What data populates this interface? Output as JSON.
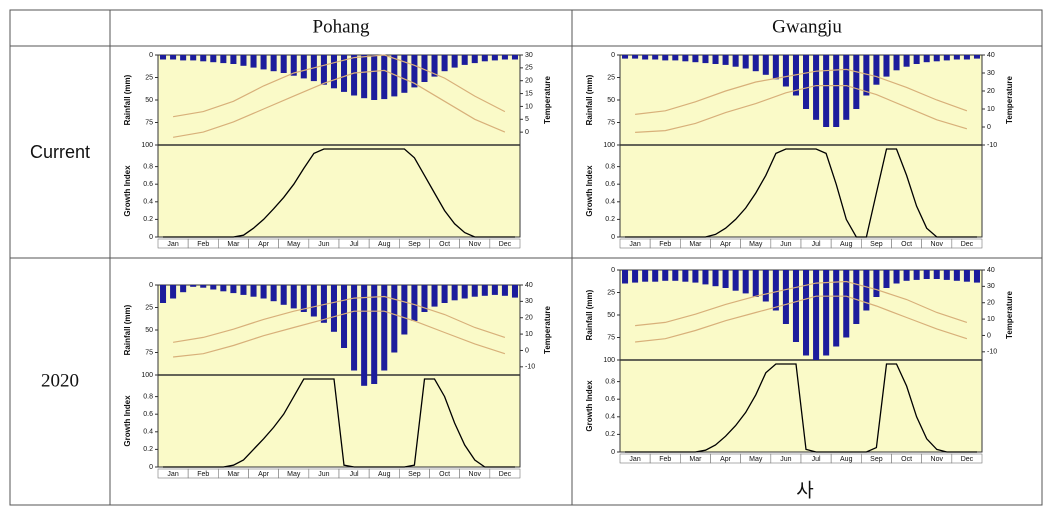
{
  "table": {
    "columns": [
      "Pohang",
      "Gwangju"
    ],
    "rows": [
      "Current",
      "2020"
    ],
    "footer": "사"
  },
  "chart_data": [
    {
      "type": "climograph",
      "months": [
        "Jan",
        "Feb",
        "Mar",
        "Apr",
        "May",
        "Jun",
        "Jul",
        "Aug",
        "Sep",
        "Oct",
        "Nov",
        "Dec"
      ],
      "rainfall": {
        "label": "Rainfall (mm)",
        "color": "#1c1c9c",
        "ylim": [
          0,
          100
        ],
        "yticks": [
          0,
          25,
          50,
          75,
          100
        ],
        "values": [
          5,
          5,
          6,
          6,
          7,
          8,
          9,
          10,
          12,
          14,
          16,
          18,
          20,
          23,
          26,
          29,
          33,
          37,
          41,
          45,
          48,
          50,
          49,
          46,
          42,
          36,
          30,
          24,
          18,
          14,
          11,
          9,
          7,
          6,
          5,
          5
        ]
      },
      "temperature": {
        "label": "Temperature",
        "color": "#d8b07a",
        "ylim": [
          -5,
          30
        ],
        "yticks": [
          0,
          5,
          10,
          15,
          20,
          25,
          30
        ],
        "series": [
          {
            "values": [
              6,
              8,
              12,
              18,
              23,
              26,
              29,
              30,
              26,
              21,
              14,
              8
            ]
          },
          {
            "values": [
              -2,
              0,
              4,
              9,
              14,
              19,
              23,
              24,
              19,
              12,
              5,
              0
            ]
          }
        ]
      },
      "growth": {
        "label": "Growth Index",
        "color": "#000000",
        "ylim": [
          0,
          1
        ],
        "yticks": [
          0,
          0.2,
          0.4,
          0.6,
          0.8
        ],
        "values": [
          0,
          0,
          0,
          0,
          0,
          0,
          0,
          0,
          0.02,
          0.1,
          0.2,
          0.32,
          0.45,
          0.6,
          0.78,
          0.95,
          1,
          1,
          1,
          1,
          1,
          1,
          1,
          1,
          1,
          0.9,
          0.7,
          0.5,
          0.3,
          0.15,
          0.05,
          0,
          0,
          0,
          0,
          0
        ]
      }
    },
    {
      "type": "climograph",
      "months": [
        "Jan",
        "Feb",
        "Mar",
        "Apr",
        "May",
        "Jun",
        "Jul",
        "Aug",
        "Sep",
        "Oct",
        "Nov",
        "Dec"
      ],
      "rainfall": {
        "label": "Rainfall (mm)",
        "color": "#1c1c9c",
        "ylim": [
          0,
          100
        ],
        "yticks": [
          0,
          25,
          50,
          75,
          100
        ],
        "values": [
          4,
          4,
          5,
          5,
          6,
          6,
          7,
          8,
          9,
          10,
          11,
          13,
          15,
          18,
          22,
          27,
          35,
          45,
          60,
          72,
          80,
          80,
          72,
          60,
          45,
          33,
          24,
          17,
          13,
          10,
          8,
          7,
          6,
          5,
          5,
          4
        ]
      },
      "temperature": {
        "label": "Temperature",
        "color": "#d8b07a",
        "ylim": [
          -10,
          40
        ],
        "yticks": [
          -10,
          0,
          10,
          20,
          30,
          40
        ],
        "series": [
          {
            "values": [
              7,
              9,
              14,
              20,
              25,
              28,
              31,
              32,
              28,
              22,
              15,
              9
            ]
          },
          {
            "values": [
              -3,
              -2,
              2,
              8,
              13,
              19,
              23,
              23,
              18,
              11,
              4,
              -1
            ]
          }
        ]
      },
      "growth": {
        "label": "Growth Index",
        "color": "#000000",
        "ylim": [
          0,
          1
        ],
        "yticks": [
          0,
          0.2,
          0.4,
          0.6,
          0.8
        ],
        "values": [
          0,
          0,
          0,
          0,
          0,
          0,
          0,
          0,
          0,
          0.03,
          0.1,
          0.2,
          0.33,
          0.5,
          0.7,
          0.95,
          1,
          1,
          1,
          1,
          0.95,
          0.6,
          0.2,
          0,
          0,
          0.5,
          1,
          1,
          0.7,
          0.35,
          0.1,
          0,
          0,
          0,
          0,
          0
        ]
      }
    },
    {
      "type": "climograph",
      "months": [
        "Jan",
        "Feb",
        "Mar",
        "Apr",
        "May",
        "Jun",
        "Jul",
        "Aug",
        "Sep",
        "Oct",
        "Nov",
        "Dec"
      ],
      "rainfall": {
        "label": "Rainfall (mm)",
        "color": "#1c1c9c",
        "ylim": [
          0,
          100
        ],
        "yticks": [
          0,
          25,
          50,
          75,
          100
        ],
        "values": [
          20,
          15,
          8,
          2,
          3,
          5,
          7,
          9,
          11,
          13,
          15,
          18,
          22,
          26,
          30,
          35,
          42,
          52,
          70,
          95,
          112,
          110,
          95,
          75,
          55,
          40,
          30,
          24,
          20,
          17,
          15,
          13,
          12,
          11,
          12,
          14
        ]
      },
      "temperature": {
        "label": "Temperature",
        "color": "#d8b07a",
        "ylim": [
          -15,
          40
        ],
        "yticks": [
          -10,
          0,
          10,
          20,
          30,
          40
        ],
        "series": [
          {
            "values": [
              5,
              8,
              13,
              19,
              24,
              28,
              32,
              33,
              28,
              22,
              14,
              8
            ]
          },
          {
            "values": [
              -4,
              -2,
              3,
              9,
              14,
              19,
              24,
              24,
              18,
              11,
              4,
              -2
            ]
          }
        ]
      },
      "growth": {
        "label": "Growth Index",
        "color": "#000000",
        "ylim": [
          0,
          1
        ],
        "yticks": [
          0,
          0.2,
          0.4,
          0.6,
          0.8
        ],
        "values": [
          0,
          0,
          0,
          0,
          0,
          0,
          0,
          0.02,
          0.08,
          0.2,
          0.32,
          0.45,
          0.6,
          0.8,
          1,
          1,
          1,
          1,
          0.02,
          0,
          0,
          0,
          0,
          0,
          0,
          0.02,
          1,
          1,
          0.8,
          0.5,
          0.25,
          0.08,
          0,
          0,
          0,
          0
        ]
      }
    },
    {
      "type": "climograph",
      "months": [
        "Jan",
        "Feb",
        "Mar",
        "Apr",
        "May",
        "Jun",
        "Jul",
        "Aug",
        "Sep",
        "Oct",
        "Nov",
        "Dec"
      ],
      "rainfall": {
        "label": "Rainfall (mm)",
        "color": "#1c1c9c",
        "ylim": [
          0,
          100
        ],
        "yticks": [
          0,
          25,
          50,
          75,
          100
        ],
        "values": [
          15,
          14,
          13,
          13,
          12,
          12,
          13,
          14,
          16,
          18,
          20,
          23,
          26,
          30,
          35,
          45,
          60,
          80,
          95,
          100,
          95,
          85,
          75,
          60,
          45,
          30,
          20,
          15,
          12,
          11,
          10,
          10,
          11,
          12,
          13,
          14
        ]
      },
      "temperature": {
        "label": "Temperature",
        "color": "#d8b07a",
        "ylim": [
          -15,
          40
        ],
        "yticks": [
          -10,
          0,
          10,
          20,
          30,
          40
        ],
        "series": [
          {
            "values": [
              6,
              8,
              13,
              19,
              24,
              28,
              32,
              33,
              28,
              22,
              14,
              8
            ]
          },
          {
            "values": [
              -4,
              -2,
              3,
              9,
              14,
              19,
              24,
              24,
              18,
              11,
              4,
              -2
            ]
          }
        ]
      },
      "growth": {
        "label": "Growth Index",
        "color": "#000000",
        "ylim": [
          0,
          1
        ],
        "yticks": [
          0,
          0.2,
          0.4,
          0.6,
          0.8
        ],
        "values": [
          0,
          0,
          0,
          0,
          0,
          0,
          0,
          0,
          0.02,
          0.08,
          0.18,
          0.3,
          0.45,
          0.65,
          0.9,
          1,
          1,
          1,
          0.03,
          0,
          0,
          0,
          0,
          0,
          0,
          0.05,
          1,
          1,
          0.75,
          0.4,
          0.15,
          0.03,
          0,
          0,
          0,
          0
        ]
      }
    }
  ]
}
